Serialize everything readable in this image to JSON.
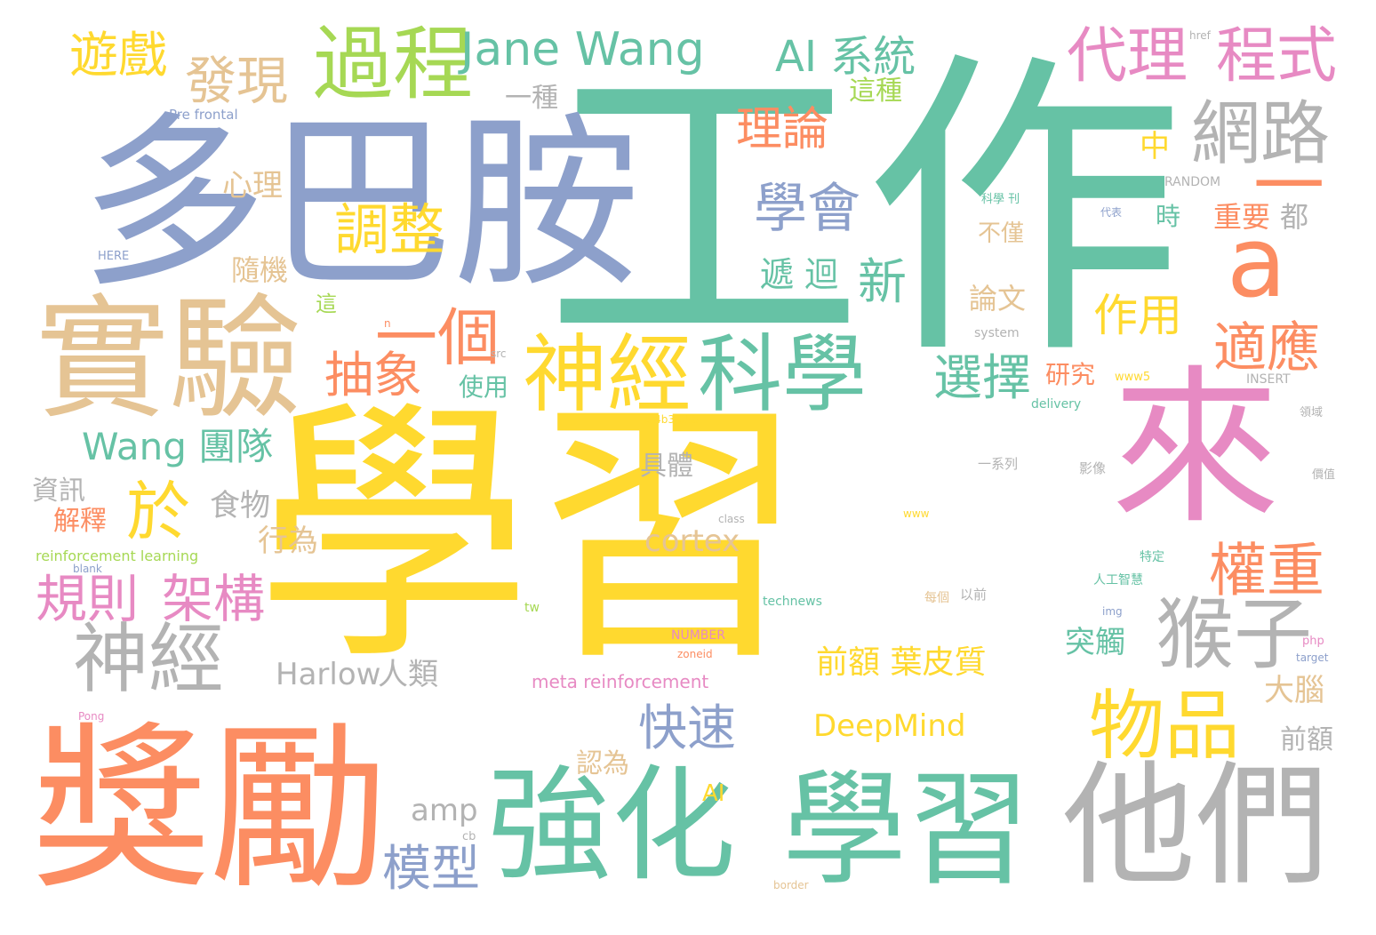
{
  "palette": {
    "teal": "#66c2a5",
    "orange": "#fc8d62",
    "blue": "#8da0cb",
    "pink": "#e78ac3",
    "green": "#a6d854",
    "yellow": "#ffd92f",
    "tan": "#e5c494",
    "gray": "#b3b3b3"
  },
  "words": [
    "學習",
    "工作",
    "多巴胺",
    "獎勵",
    "實驗",
    "來",
    "強化",
    "學習",
    "他們",
    "神經",
    "科學",
    "神經",
    "過程",
    "發現",
    "遊戲",
    "Jane Wang",
    "AI 系統",
    "代理",
    "程式",
    "網路",
    "學會",
    "理論",
    "調整",
    "一",
    "a",
    "猴子",
    "一個",
    "抽象",
    "選擇",
    "適應",
    "作用",
    "新",
    "遞 迴",
    "心理",
    "隨機",
    "不僅",
    "重要",
    "都",
    "時",
    "中",
    "於",
    "Wang 團隊",
    "規則",
    "架構",
    "權重",
    "物品",
    "快速",
    "模型",
    "amp",
    "DeepMind",
    "前額 葉皮質",
    "Harlow",
    "人類",
    "具體",
    "食物",
    "行為",
    "cortex",
    "資訊",
    "解釋",
    "使用",
    "研究",
    "論文",
    "突觸",
    "大腦",
    "前額",
    "認為",
    "meta reinforcement",
    "reinforcement learning",
    "一種",
    "這種",
    "這",
    "AI",
    "Pre frontal",
    "RANDOM",
    "HERE",
    "INSERT",
    "system",
    "www5",
    "delivery",
    "影像",
    "一系列",
    "technews",
    "NUMBER",
    "人工智慧",
    "以前",
    "每個",
    "特定",
    "tw",
    "img",
    "php",
    "target",
    "科學 刊",
    "代表",
    "www",
    "cb",
    "border",
    "Pong",
    "blank",
    "src",
    "href",
    "n",
    "zoneid",
    "class",
    "領域",
    "價值",
    "a 4b3f35b"
  ]
}
